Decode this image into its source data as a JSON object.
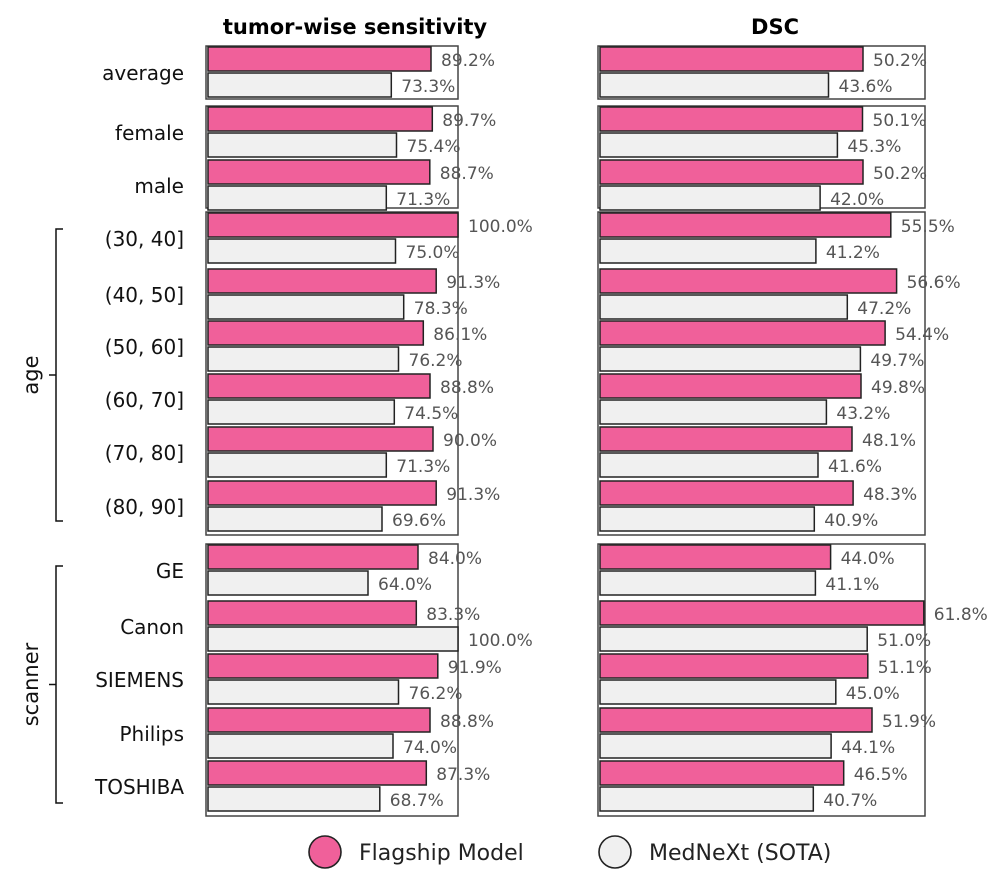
{
  "chart_data": {
    "type": "bar",
    "orientation": "horizontal",
    "categories": [
      "average",
      "female",
      "male",
      "(30, 40]",
      "(40, 50]",
      "(50, 60]",
      "(60, 70]",
      "(70, 80]",
      "(80, 90]",
      "GE",
      "Canon",
      "SIEMENS",
      "Philips",
      "TOSHIBA"
    ],
    "category_groups": [
      {
        "name": "",
        "categories": [
          "average"
        ]
      },
      {
        "name": "",
        "categories": [
          "female",
          "male"
        ]
      },
      {
        "name": "age",
        "categories": [
          "(30, 40]",
          "(40, 50]",
          "(50, 60]",
          "(60, 70]",
          "(70, 80]",
          "(80, 90]"
        ]
      },
      {
        "name": "scanner",
        "categories": [
          "GE",
          "Canon",
          "SIEMENS",
          "Philips",
          "TOSHIBA"
        ]
      }
    ],
    "panels": [
      {
        "title": "tumor-wise sensitivity",
        "xlim": [
          0,
          100
        ],
        "series": [
          {
            "name": "Flagship Model",
            "values": [
              89.2,
              89.7,
              88.7,
              100.0,
              91.3,
              86.1,
              88.8,
              90.0,
              91.3,
              84.0,
              83.3,
              91.9,
              88.8,
              87.3
            ]
          },
          {
            "name": "MedNeXt (SOTA)",
            "values": [
              73.3,
              75.4,
              71.3,
              75.0,
              78.3,
              76.2,
              74.5,
              71.3,
              69.6,
              64.0,
              100.0,
              76.2,
              74.0,
              68.7
            ]
          }
        ]
      },
      {
        "title": "DSC",
        "xlim": [
          0,
          100
        ],
        "series": [
          {
            "name": "Flagship Model",
            "values": [
              50.2,
              50.1,
              50.2,
              55.5,
              56.6,
              54.4,
              49.8,
              48.1,
              48.3,
              44.0,
              61.8,
              51.1,
              51.9,
              46.5
            ]
          },
          {
            "name": "MedNeXt (SOTA)",
            "values": [
              43.6,
              45.3,
              42.0,
              41.2,
              47.2,
              49.7,
              43.2,
              41.6,
              40.9,
              41.1,
              51.0,
              45.0,
              44.1,
              40.7
            ]
          }
        ]
      }
    ],
    "legend": {
      "position": "bottom",
      "entries": [
        {
          "name": "Flagship Model",
          "color": "#f0609a"
        },
        {
          "name": "MedNeXt (SOTA)",
          "color": "#f0f0f0"
        }
      ]
    },
    "value_suffix": "%",
    "grid": false
  }
}
